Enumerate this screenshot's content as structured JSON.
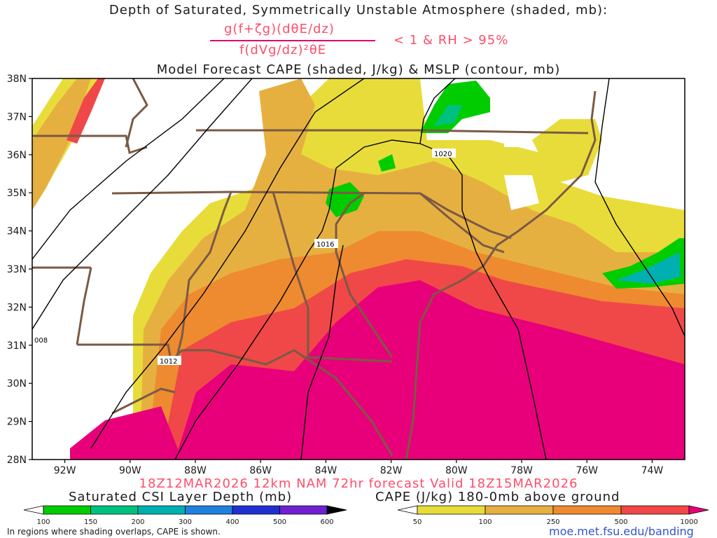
{
  "title": {
    "line1": "Depth of Saturated, Symmetrically Unstable Atmosphere (shaded, mb):",
    "numerator": "g(f+ζg)(dθE/dz)",
    "denominator": "f(dVg/dz)²θE",
    "condition": "< 1 & RH > 95%",
    "line3": "Model Forecast CAPE (shaded, J/kg) & MSLP (contour, mb)"
  },
  "map": {
    "lat_labels": [
      "38N",
      "37N",
      "36N",
      "35N",
      "34N",
      "33N",
      "32N",
      "31N",
      "30N",
      "29N",
      "28N"
    ],
    "lon_labels": [
      "92W",
      "90W",
      "88W",
      "86W",
      "84W",
      "82W",
      "80W",
      "78W",
      "76W",
      "74W"
    ],
    "lat_range": [
      28,
      38
    ],
    "lon_range": [
      -93,
      -73
    ],
    "isobar_labels": [
      "1020",
      "1016",
      "1012",
      "008"
    ]
  },
  "valid_line": "18Z12MAR2026 12km NAM 72hr forecast Valid 18Z15MAR2026",
  "legend_csi": {
    "title": "Saturated CSI Layer Depth (mb)",
    "ticks": [
      "100",
      "150",
      "200",
      "300",
      "400",
      "500",
      "600"
    ],
    "colors": [
      "#ffffff",
      "#00cc00",
      "#00c080",
      "#00b0b0",
      "#2080e0",
      "#2030d0",
      "#7020d0",
      "#000000"
    ]
  },
  "legend_cape": {
    "title": "CAPE (J/kg) 180-0mb above ground",
    "ticks": [
      "50",
      "100",
      "250",
      "500",
      "1000"
    ],
    "colors": [
      "#ffffff",
      "#e8dc3a",
      "#e6b040",
      "#ee8a30",
      "#f04848",
      "#e8007a"
    ]
  },
  "footer_note": "In regions where shading overlaps, CAPE is shown.",
  "url": "moe.met.fsu.edu/banding"
}
